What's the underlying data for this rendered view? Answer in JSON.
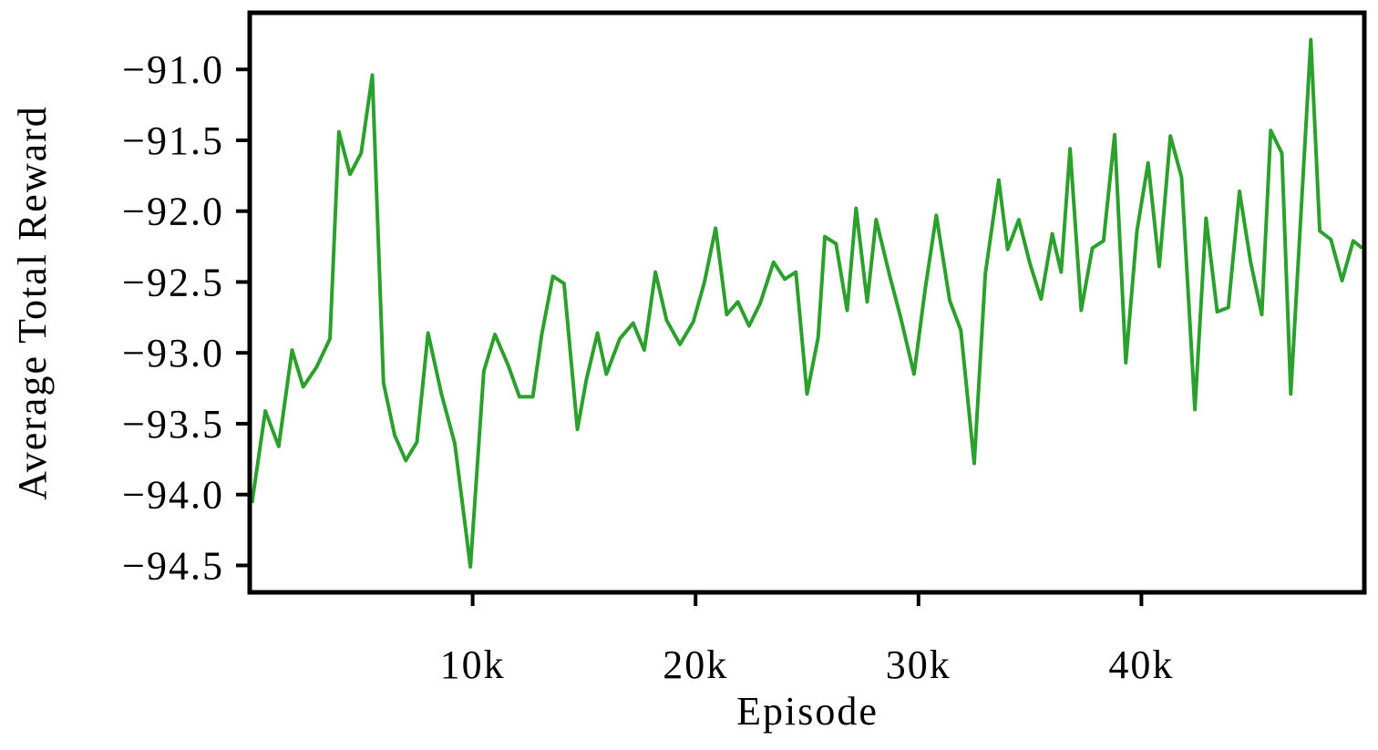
{
  "chart_data": {
    "type": "line",
    "xlabel": "Episode",
    "ylabel": "Average Total Reward",
    "color": "#2ca02c",
    "xlim": [
      0,
      50000
    ],
    "ylim": [
      -94.69,
      -90.6
    ],
    "xticks": [
      {
        "value": 10000,
        "label": "10k"
      },
      {
        "value": 20000,
        "label": "20k"
      },
      {
        "value": 30000,
        "label": "30k"
      },
      {
        "value": 40000,
        "label": "40k"
      }
    ],
    "yticks": [
      {
        "value": -94.5,
        "label": "−94.5"
      },
      {
        "value": -94,
        "label": "−94.0"
      },
      {
        "value": -93.5,
        "label": "−93.5"
      },
      {
        "value": -93,
        "label": "−93.0"
      },
      {
        "value": -92.5,
        "label": "−92.5"
      },
      {
        "value": -92,
        "label": "−92.0"
      },
      {
        "value": -91.5,
        "label": "−91.5"
      },
      {
        "value": -91,
        "label": "−91.0"
      }
    ],
    "x": [
      100,
      700,
      1300,
      1900,
      2400,
      3000,
      3600,
      4000,
      4500,
      5000,
      5500,
      6000,
      6500,
      7000,
      7500,
      8000,
      8600,
      9200,
      9900,
      10500,
      11000,
      11600,
      12100,
      12700,
      13100,
      13600,
      14100,
      14700,
      15100,
      15600,
      16000,
      16600,
      17200,
      17700,
      18200,
      18700,
      19300,
      19900,
      20400,
      20900,
      21400,
      21900,
      22400,
      22900,
      23500,
      24000,
      24500,
      25000,
      25500,
      25800,
      26300,
      26800,
      27200,
      27700,
      28100,
      28700,
      29200,
      29800,
      30300,
      30800,
      31400,
      31900,
      32500,
      33000,
      33600,
      34000,
      34500,
      35000,
      35500,
      36000,
      36400,
      36800,
      37300,
      37800,
      38300,
      38800,
      39300,
      39800,
      40300,
      40800,
      41300,
      41800,
      42400,
      42900,
      43400,
      43900,
      44400,
      44900,
      45400,
      45800,
      46300,
      46700,
      47600,
      48000,
      48500,
      49000,
      49500,
      49900
    ],
    "values": [
      -94.06,
      -93.41,
      -93.66,
      -92.98,
      -93.24,
      -93.1,
      -92.9,
      -91.44,
      -91.74,
      -91.59,
      -91.04,
      -93.21,
      -93.58,
      -93.76,
      -93.63,
      -92.86,
      -93.29,
      -93.64,
      -94.51,
      -93.13,
      -92.87,
      -93.09,
      -93.31,
      -93.31,
      -92.87,
      -92.46,
      -92.51,
      -93.54,
      -93.19,
      -92.86,
      -93.15,
      -92.9,
      -92.79,
      -92.98,
      -92.43,
      -92.77,
      -92.94,
      -92.78,
      -92.5,
      -92.12,
      -92.73,
      -92.64,
      -92.81,
      -92.65,
      -92.36,
      -92.48,
      -92.43,
      -93.29,
      -92.89,
      -92.18,
      -92.23,
      -92.7,
      -91.98,
      -92.64,
      -92.06,
      -92.45,
      -92.75,
      -93.15,
      -92.55,
      -92.03,
      -92.63,
      -92.84,
      -93.78,
      -92.44,
      -91.78,
      -92.27,
      -92.06,
      -92.37,
      -92.62,
      -92.16,
      -92.43,
      -91.56,
      -92.7,
      -92.26,
      -92.21,
      -91.46,
      -93.07,
      -92.14,
      -91.66,
      -92.39,
      -91.47,
      -91.76,
      -93.4,
      -92.05,
      -92.71,
      -92.68,
      -91.86,
      -92.36,
      -92.73,
      -91.43,
      -91.59,
      -93.29,
      -90.79,
      -92.14,
      -92.2,
      -92.49,
      -92.21,
      -92.26
    ]
  }
}
